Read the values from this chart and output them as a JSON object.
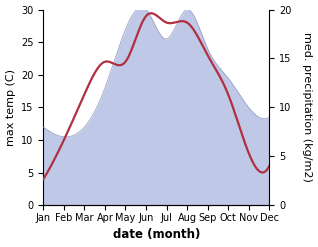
{
  "months": [
    "Jan",
    "Feb",
    "Mar",
    "Apr",
    "May",
    "Jun",
    "Jul",
    "Aug",
    "Sep",
    "Oct",
    "Nov",
    "Dec"
  ],
  "max_temp": [
    4,
    10,
    17,
    22,
    22,
    29,
    28,
    28,
    23,
    17,
    8,
    6
  ],
  "precipitation": [
    8,
    7,
    8,
    12,
    18,
    20,
    17,
    20,
    16,
    13,
    10,
    9
  ],
  "temp_color": "#b03040",
  "precip_fill_color": "#c0c8e8",
  "precip_line_color": "#9098c0",
  "temp_ylim": [
    0,
    30
  ],
  "precip_ylim": [
    0,
    20
  ],
  "left_yticks": [
    0,
    5,
    10,
    15,
    20,
    25,
    30
  ],
  "right_yticks": [
    0,
    5,
    10,
    15,
    20
  ],
  "ylabel_left": "max temp (C)",
  "ylabel_right": "med. precipitation (kg/m2)",
  "xlabel": "date (month)",
  "background_color": "#ffffff",
  "label_fontsize": 8,
  "tick_fontsize": 7,
  "xlabel_fontsize": 8.5,
  "linewidth_temp": 1.6,
  "linewidth_precip": 0.5
}
